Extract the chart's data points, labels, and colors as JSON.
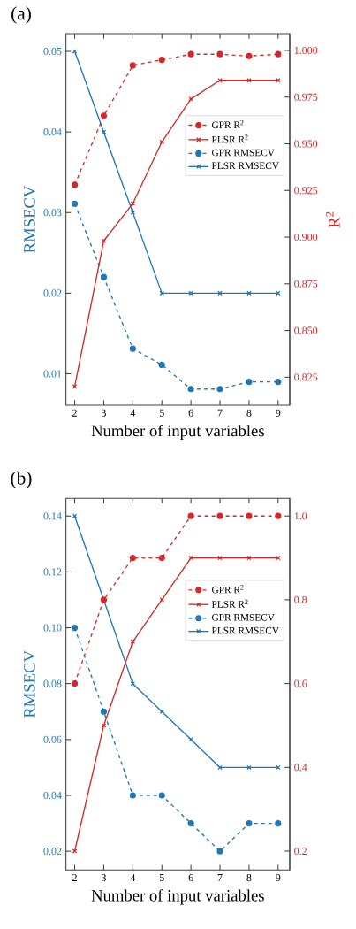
{
  "chart_data": [
    {
      "type": "line",
      "xlabel": "Number of input variables",
      "ylabel": "RMSECV",
      "y2label": "R$^{2}$",
      "annotations": [
        "(a)"
      ],
      "legend": "top right",
      "x": [
        2,
        3,
        4,
        5,
        6,
        7,
        8,
        9
      ],
      "xlim": [
        1.7,
        9.4
      ],
      "xticks": [
        2,
        3,
        4,
        5,
        6,
        7,
        8,
        9
      ],
      "ylim": [
        0.0061,
        0.0522
      ],
      "yticks": [
        0.01,
        0.02,
        0.03,
        0.04,
        0.05
      ],
      "y2lim": [
        0.81,
        1.009
      ],
      "y2ticks": [
        {
          "value": 0.825,
          "label": "0.825"
        },
        {
          "value": 0.85,
          "label": "0.850"
        },
        {
          "value": 0.875,
          "label": "0.875"
        },
        {
          "value": 0.9,
          "label": "0.900"
        },
        {
          "value": 0.925,
          "label": "0.925"
        },
        {
          "value": 0.95,
          "label": "0.950"
        },
        {
          "value": 0.975,
          "label": "0.975"
        },
        {
          "value": 1.0,
          "label": "1.000"
        }
      ],
      "series": [
        {
          "name": "GPR R$^{2}$",
          "color": "#d62728",
          "axis": "y2",
          "marker": "circle",
          "line_style": "dashed",
          "values": [
            0.928,
            0.965,
            0.992,
            0.995,
            0.998,
            0.998,
            0.997,
            0.998
          ]
        },
        {
          "name": "PLSR R$^{2}$",
          "color": "#d62728",
          "axis": "y2",
          "marker": "cross",
          "line_style": "solid",
          "values": [
            0.82,
            0.898,
            0.918,
            0.951,
            0.974,
            0.984,
            0.984,
            0.984
          ]
        },
        {
          "name": "GPR RMSECV",
          "color": "#1f77b4",
          "axis": "y",
          "marker": "circle",
          "line_style": "dashed",
          "values": [
            0.0311,
            0.022,
            0.0131,
            0.0111,
            0.0081,
            0.0081,
            0.009,
            0.009
          ]
        },
        {
          "name": "PLSR RMSECV",
          "color": "#1f77b4",
          "axis": "y",
          "marker": "cross",
          "line_style": "solid",
          "values": [
            0.05,
            0.04,
            0.03,
            0.02,
            0.02,
            0.02,
            0.02,
            0.02
          ]
        }
      ]
    },
    {
      "type": "line",
      "xlabel": "Number of input variables",
      "ylabel": "RMSECV",
      "annotations": [
        "(b)"
      ],
      "legend": "top right",
      "x": [
        2,
        3,
        4,
        5,
        6,
        7,
        8,
        9
      ],
      "xlim": [
        1.7,
        9.4
      ],
      "xticks": [
        2,
        3,
        4,
        5,
        6,
        7,
        8,
        9
      ],
      "ylim": [
        0.0133,
        0.1463
      ],
      "yticks": [
        0.02,
        0.04,
        0.06,
        0.08,
        {
          "value": 0.1,
          "label": "0.10"
        },
        0.12,
        0.14
      ],
      "y2lim": [
        0.155,
        1.042
      ],
      "y2ticks": [
        0.2,
        0.4,
        0.6,
        0.8,
        {
          "value": 1.0,
          "label": "1.0"
        }
      ],
      "series": [
        {
          "name": "GPR R$^{2}$",
          "color": "#d62728",
          "axis": "y2",
          "marker": "circle",
          "line_style": "dashed",
          "values": [
            0.6,
            0.8,
            0.9,
            0.9,
            1.0,
            1.0,
            1.0,
            1.0
          ]
        },
        {
          "name": "PLSR R$^{2}$",
          "color": "#d62728",
          "axis": "y2",
          "marker": "cross",
          "line_style": "solid",
          "values": [
            0.2,
            0.5,
            0.7,
            0.8,
            0.9,
            0.9,
            0.9,
            0.9
          ]
        },
        {
          "name": "GPR RMSECV",
          "color": "#1f77b4",
          "axis": "y",
          "marker": "circle",
          "line_style": "dashed",
          "values": [
            0.1,
            0.07,
            0.04,
            0.04,
            0.03,
            0.02,
            0.03,
            0.03
          ]
        },
        {
          "name": "PLSR RMSECV",
          "color": "#1f77b4",
          "axis": "y",
          "marker": "cross",
          "line_style": "solid",
          "values": [
            0.14,
            0.11,
            0.08,
            0.07,
            0.06,
            0.05,
            0.05,
            0.05
          ]
        }
      ]
    }
  ]
}
